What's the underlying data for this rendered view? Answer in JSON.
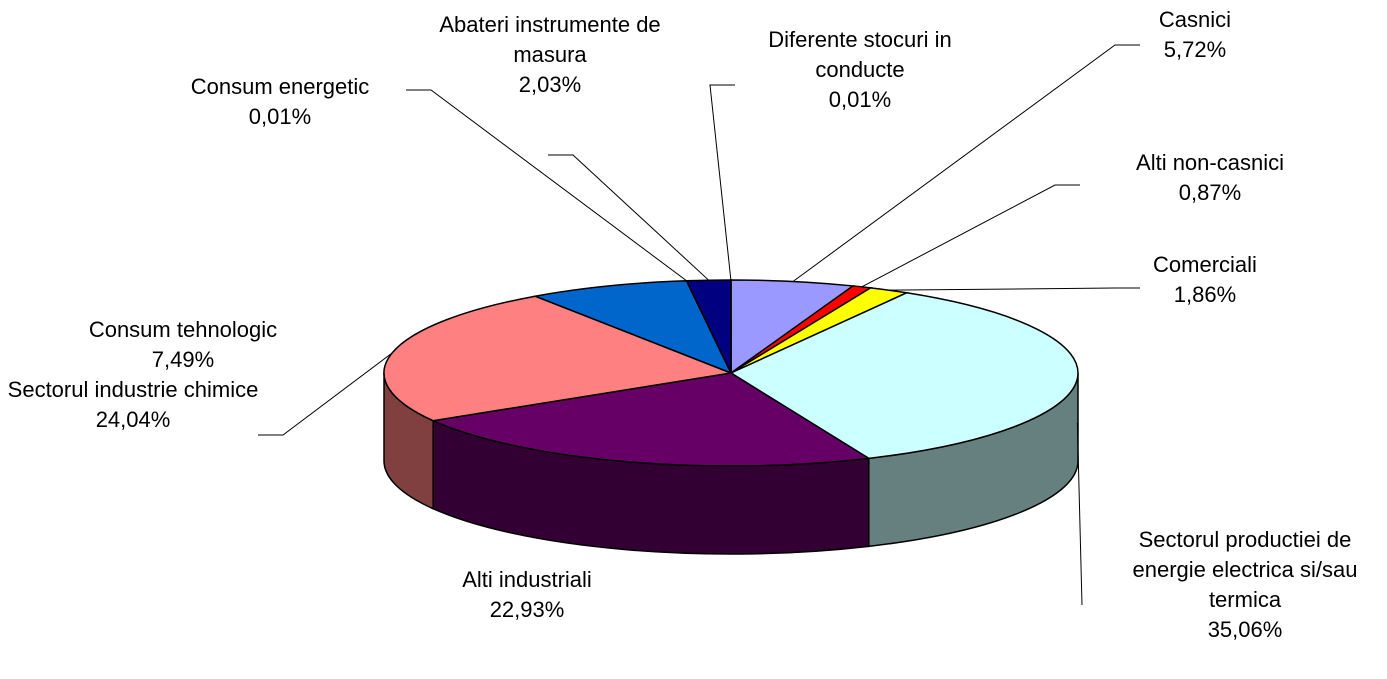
{
  "chart_data": {
    "type": "pie3d",
    "categories": [
      "Casnici",
      "Alti non-casnici",
      "Comerciali",
      "Sectorul productiei de energie electrica si/sau termica",
      "Alti industriali",
      "Sectorul industrie chimice",
      "Consum tehnologic",
      "Consum energetic",
      "Abateri instrumente de masura",
      "Diferente stocuri in conducte"
    ],
    "values": [
      5.72,
      0.87,
      1.86,
      35.06,
      22.93,
      24.04,
      7.49,
      0.01,
      2.03,
      0.01
    ],
    "value_labels": [
      "5,72%",
      "0,87%",
      "1,86%",
      "35,06%",
      "22,93%",
      "24,04%",
      "7,49%",
      "0,01%",
      "2,03%",
      "0,01%"
    ],
    "colors": [
      "#9999ff",
      "#ff0000",
      "#ffff00",
      "#ccffff",
      "#660066",
      "#ff8080",
      "#0066cc",
      "#000080",
      "#000080",
      "#9999ff"
    ]
  }
}
